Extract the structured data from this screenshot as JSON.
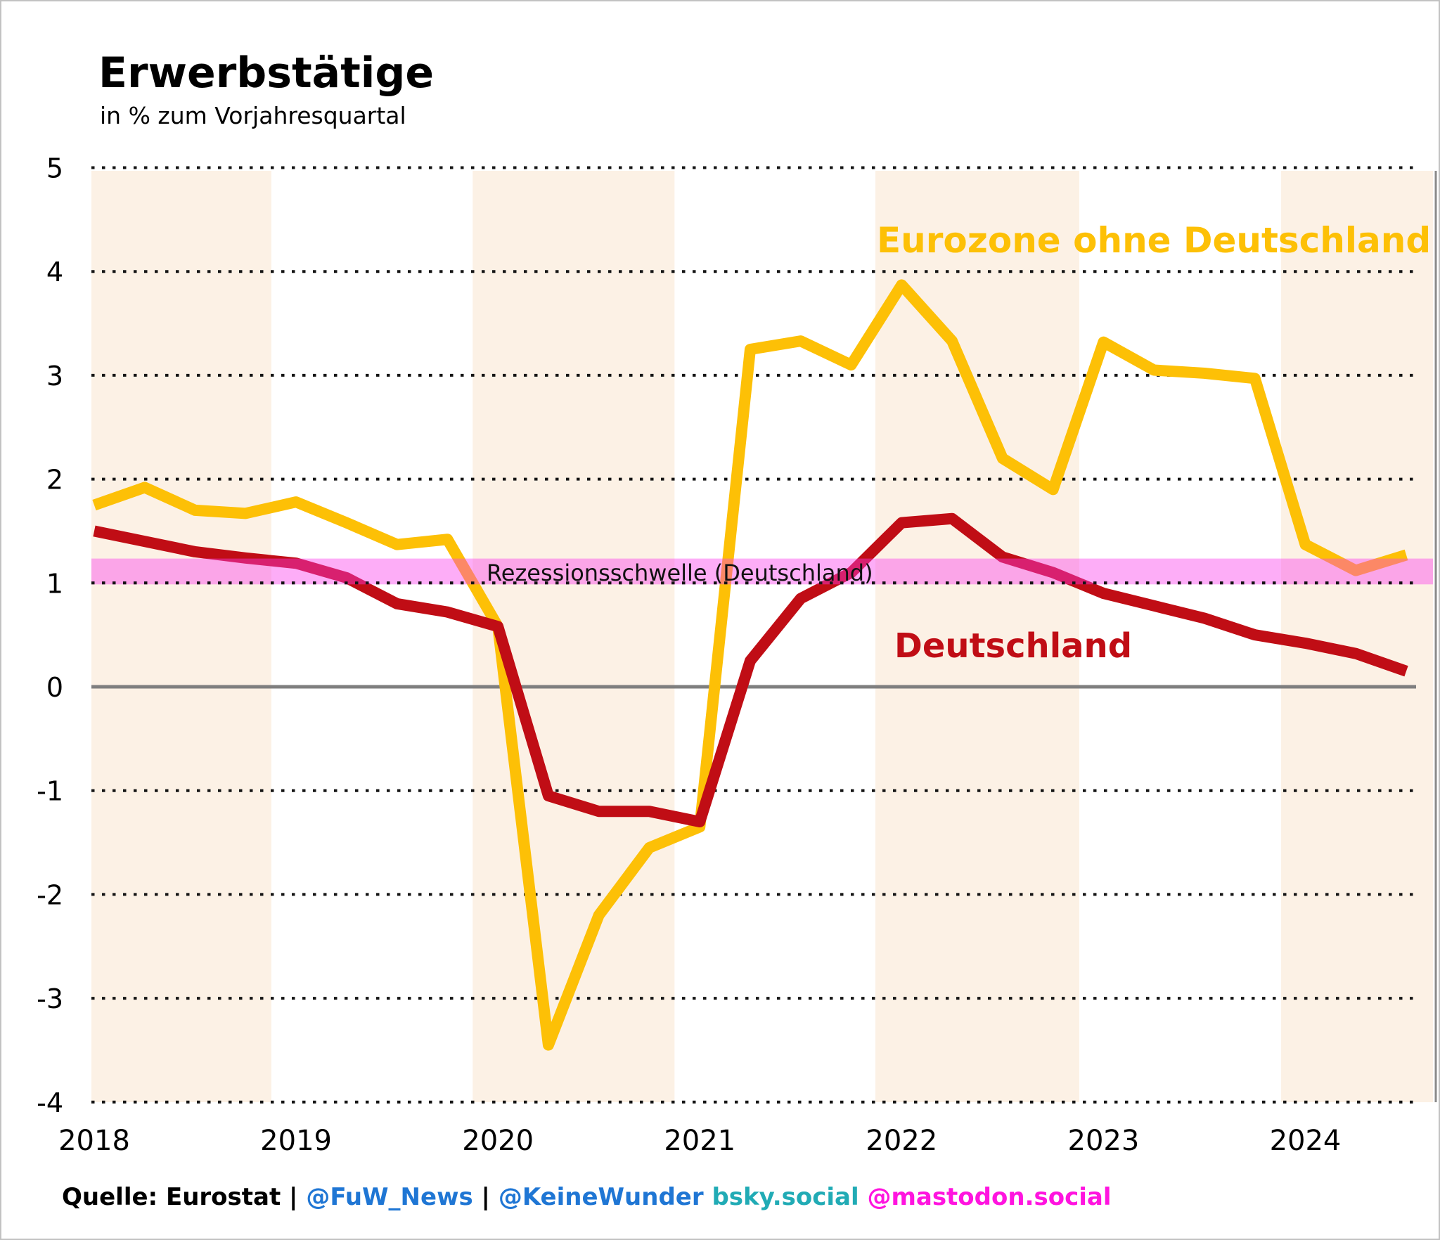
{
  "title": "Erwerbstätige",
  "subtitle": "in % zum Vorjahresquartal",
  "chart_data": {
    "type": "line",
    "x_quarters": [
      "2018 Q1",
      "2018 Q2",
      "2018 Q3",
      "2018 Q4",
      "2019 Q1",
      "2019 Q2",
      "2019 Q3",
      "2019 Q4",
      "2020 Q1",
      "2020 Q2",
      "2020 Q3",
      "2020 Q4",
      "2021 Q1",
      "2021 Q2",
      "2021 Q3",
      "2021 Q4",
      "2022 Q1",
      "2022 Q2",
      "2022 Q3",
      "2022 Q4",
      "2023 Q1",
      "2023 Q2",
      "2023 Q3",
      "2023 Q4",
      "2024 Q1",
      "2024 Q2",
      "2024 Q3"
    ],
    "series": [
      {
        "name": "Eurozone ohne Deutschland",
        "color": "#FDC006",
        "values": [
          1.75,
          1.92,
          1.7,
          1.67,
          1.78,
          1.58,
          1.37,
          1.42,
          0.58,
          -3.45,
          -2.2,
          -1.55,
          -1.35,
          3.25,
          3.33,
          3.1,
          3.87,
          3.33,
          2.2,
          1.9,
          3.32,
          3.05,
          3.02,
          2.97,
          1.37,
          1.12,
          1.27
        ]
      },
      {
        "name": "Deutschland",
        "color": "#C00D15",
        "values": [
          1.5,
          1.4,
          1.3,
          1.24,
          1.19,
          1.05,
          0.8,
          0.72,
          0.58,
          -1.05,
          -1.2,
          -1.2,
          -1.3,
          0.25,
          0.85,
          1.1,
          1.58,
          1.62,
          1.25,
          1.1,
          0.9,
          0.78,
          0.66,
          0.5,
          0.42,
          0.32,
          0.15
        ]
      }
    ],
    "ylim": [
      -4,
      5
    ],
    "yticks": [
      5,
      4,
      3,
      2,
      1,
      0,
      -1,
      -2,
      -3,
      -4
    ],
    "year_ticks": [
      "2018",
      "2019",
      "2020",
      "2021",
      "2022",
      "2023",
      "2024"
    ],
    "grid": "horizontal dotted gridlines, solid gray zero line, gray right spine",
    "legend_position": "labels drawn directly on plot",
    "recession_band": {
      "label": "Rezessionsschwelle (Deutschland)",
      "from": 1.0,
      "to": 1.235,
      "overlay_color": "#FA3CEB",
      "overlay_opacity": 0.42,
      "label_color": "#111111"
    },
    "year_shading": {
      "color": "#FCF1E5",
      "ranges_quarter_index": [
        [
          -0.06,
          3.51
        ],
        [
          7.5,
          11.5
        ],
        [
          15.48,
          19.52
        ],
        [
          23.52,
          26.55
        ]
      ]
    },
    "zero_line_color": "#7f7f7f",
    "gridline_color": "#141414"
  },
  "footer": {
    "segments": [
      {
        "id": "source-text",
        "text": "Quelle: Eurostat",
        "color": "#000000"
      },
      {
        "id": "separator-1",
        "text": " | ",
        "color": "#000000"
      },
      {
        "id": "fuw-handle",
        "text": "@FuW_News",
        "color": "#1F76D4"
      },
      {
        "id": "separator-2",
        "text": " | ",
        "color": "#000000"
      },
      {
        "id": "keinewunder-handle",
        "text": "@KeineWunder",
        "color": "#1F76D4"
      },
      {
        "id": "bsky-domain",
        "text": " bsky.social",
        "color": "#21ABB5"
      },
      {
        "id": "mastodon-handle",
        "text": " @mastodon.social",
        "color": "#FF14DF"
      }
    ]
  }
}
